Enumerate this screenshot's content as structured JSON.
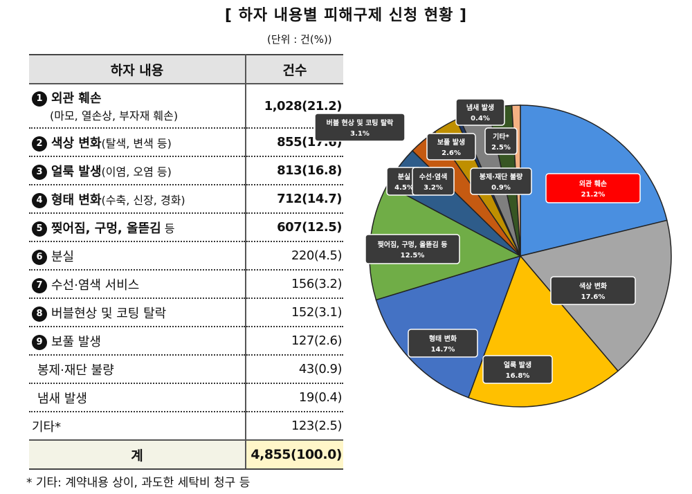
{
  "title": "[ 하자 내용별 피해구제 신청 현황 ]",
  "unit": "(단위 : 건(%))",
  "table": {
    "headers": [
      "하자 내용",
      "건수"
    ],
    "rows": [
      {
        "marker": "1",
        "name": "외관 훼손",
        "detail": "(마모, 열손상, 부자재 훼손)",
        "value": "1,028(21.2)",
        "bold": true
      },
      {
        "marker": "2",
        "name": "색상 변화",
        "detail": "(탈색, 변색 등)",
        "value": "855(17.6)",
        "bold": true
      },
      {
        "marker": "3",
        "name": "얼룩 발생",
        "detail": "(이염, 오염 등)",
        "value": "813(16.8)",
        "bold": true
      },
      {
        "marker": "4",
        "name": "형태 변화",
        "detail": "(수축, 신장, 경화)",
        "value": "712(14.7)",
        "bold": true
      },
      {
        "marker": "5",
        "name": "찢어짐, 구멍, 올뜯김",
        "detail": " 등",
        "value": "607(12.5)",
        "bold": true
      },
      {
        "marker": "6",
        "name": "분실",
        "detail": "",
        "value": "220(4.5)",
        "bold": false
      },
      {
        "marker": "7",
        "name": "수선·염색 서비스",
        "detail": "",
        "value": "156(3.2)",
        "bold": false
      },
      {
        "marker": "8",
        "name": "버블현상 및 코팅 탈락",
        "detail": "",
        "value": "152(3.1)",
        "bold": false
      },
      {
        "marker": "9",
        "name": "보풀 발생",
        "detail": "",
        "value": "127(2.6)",
        "bold": false
      },
      {
        "marker": "",
        "name": "봉제·재단 불량",
        "detail": "",
        "value": "43(0.9)",
        "bold": false
      },
      {
        "marker": "",
        "name": "냄새 발생",
        "detail": "",
        "value": "19(0.4)",
        "bold": false
      },
      {
        "marker": "",
        "name": "기타*",
        "detail": "",
        "value": "123(2.5)",
        "bold": false
      }
    ],
    "total": {
      "name": "계",
      "value": "4,855(100.0)"
    }
  },
  "footnote": "* 기타: 계약내용 상이, 과도한 세탁비 청구 등",
  "chart_data": {
    "type": "pie",
    "slices": [
      {
        "label": "외관 훼손",
        "pct_text": "21.2%",
        "value": 21.2,
        "color": "#4a8fe0"
      },
      {
        "label": "색상 변화",
        "pct_text": "17.6%",
        "value": 17.6,
        "color": "#a6a6a6"
      },
      {
        "label": "얼룩 발생",
        "pct_text": "16.8%",
        "value": 16.8,
        "color": "#ffc000"
      },
      {
        "label": "형태 변화",
        "pct_text": "14.7%",
        "value": 14.7,
        "color": "#4472c4"
      },
      {
        "label": "찢어짐, 구멍, 올뜯김 등",
        "pct_text": "12.5%",
        "value": 12.5,
        "color": "#70ad47"
      },
      {
        "label": "분실",
        "pct_text": "4.5%",
        "value": 4.5,
        "color": "#2e5c8a"
      },
      {
        "label": "버블 현상 및 코팅 탈락",
        "pct_text": "3.1%",
        "value": 3.1,
        "color": "#c55a11"
      },
      {
        "label": "보풀 발생",
        "pct_text": "2.6%",
        "value": 2.6,
        "color": "#bf8f00"
      },
      {
        "label": "냄새 발생",
        "pct_text": "0.4%",
        "value": 0.4,
        "color": "#203864"
      },
      {
        "label": "수선·염색",
        "pct_text": "3.2%",
        "value": 3.2,
        "color": "#7f7f7f"
      },
      {
        "label": "기타*",
        "pct_text": "2.5%",
        "value": 2.5,
        "color": "#375623"
      },
      {
        "label": "봉제·재단 불량",
        "pct_text": "0.9%",
        "value": 0.9,
        "color": "#f4b183"
      }
    ],
    "highlight": "외관 훼손",
    "highlight_color": "#ff0000"
  }
}
